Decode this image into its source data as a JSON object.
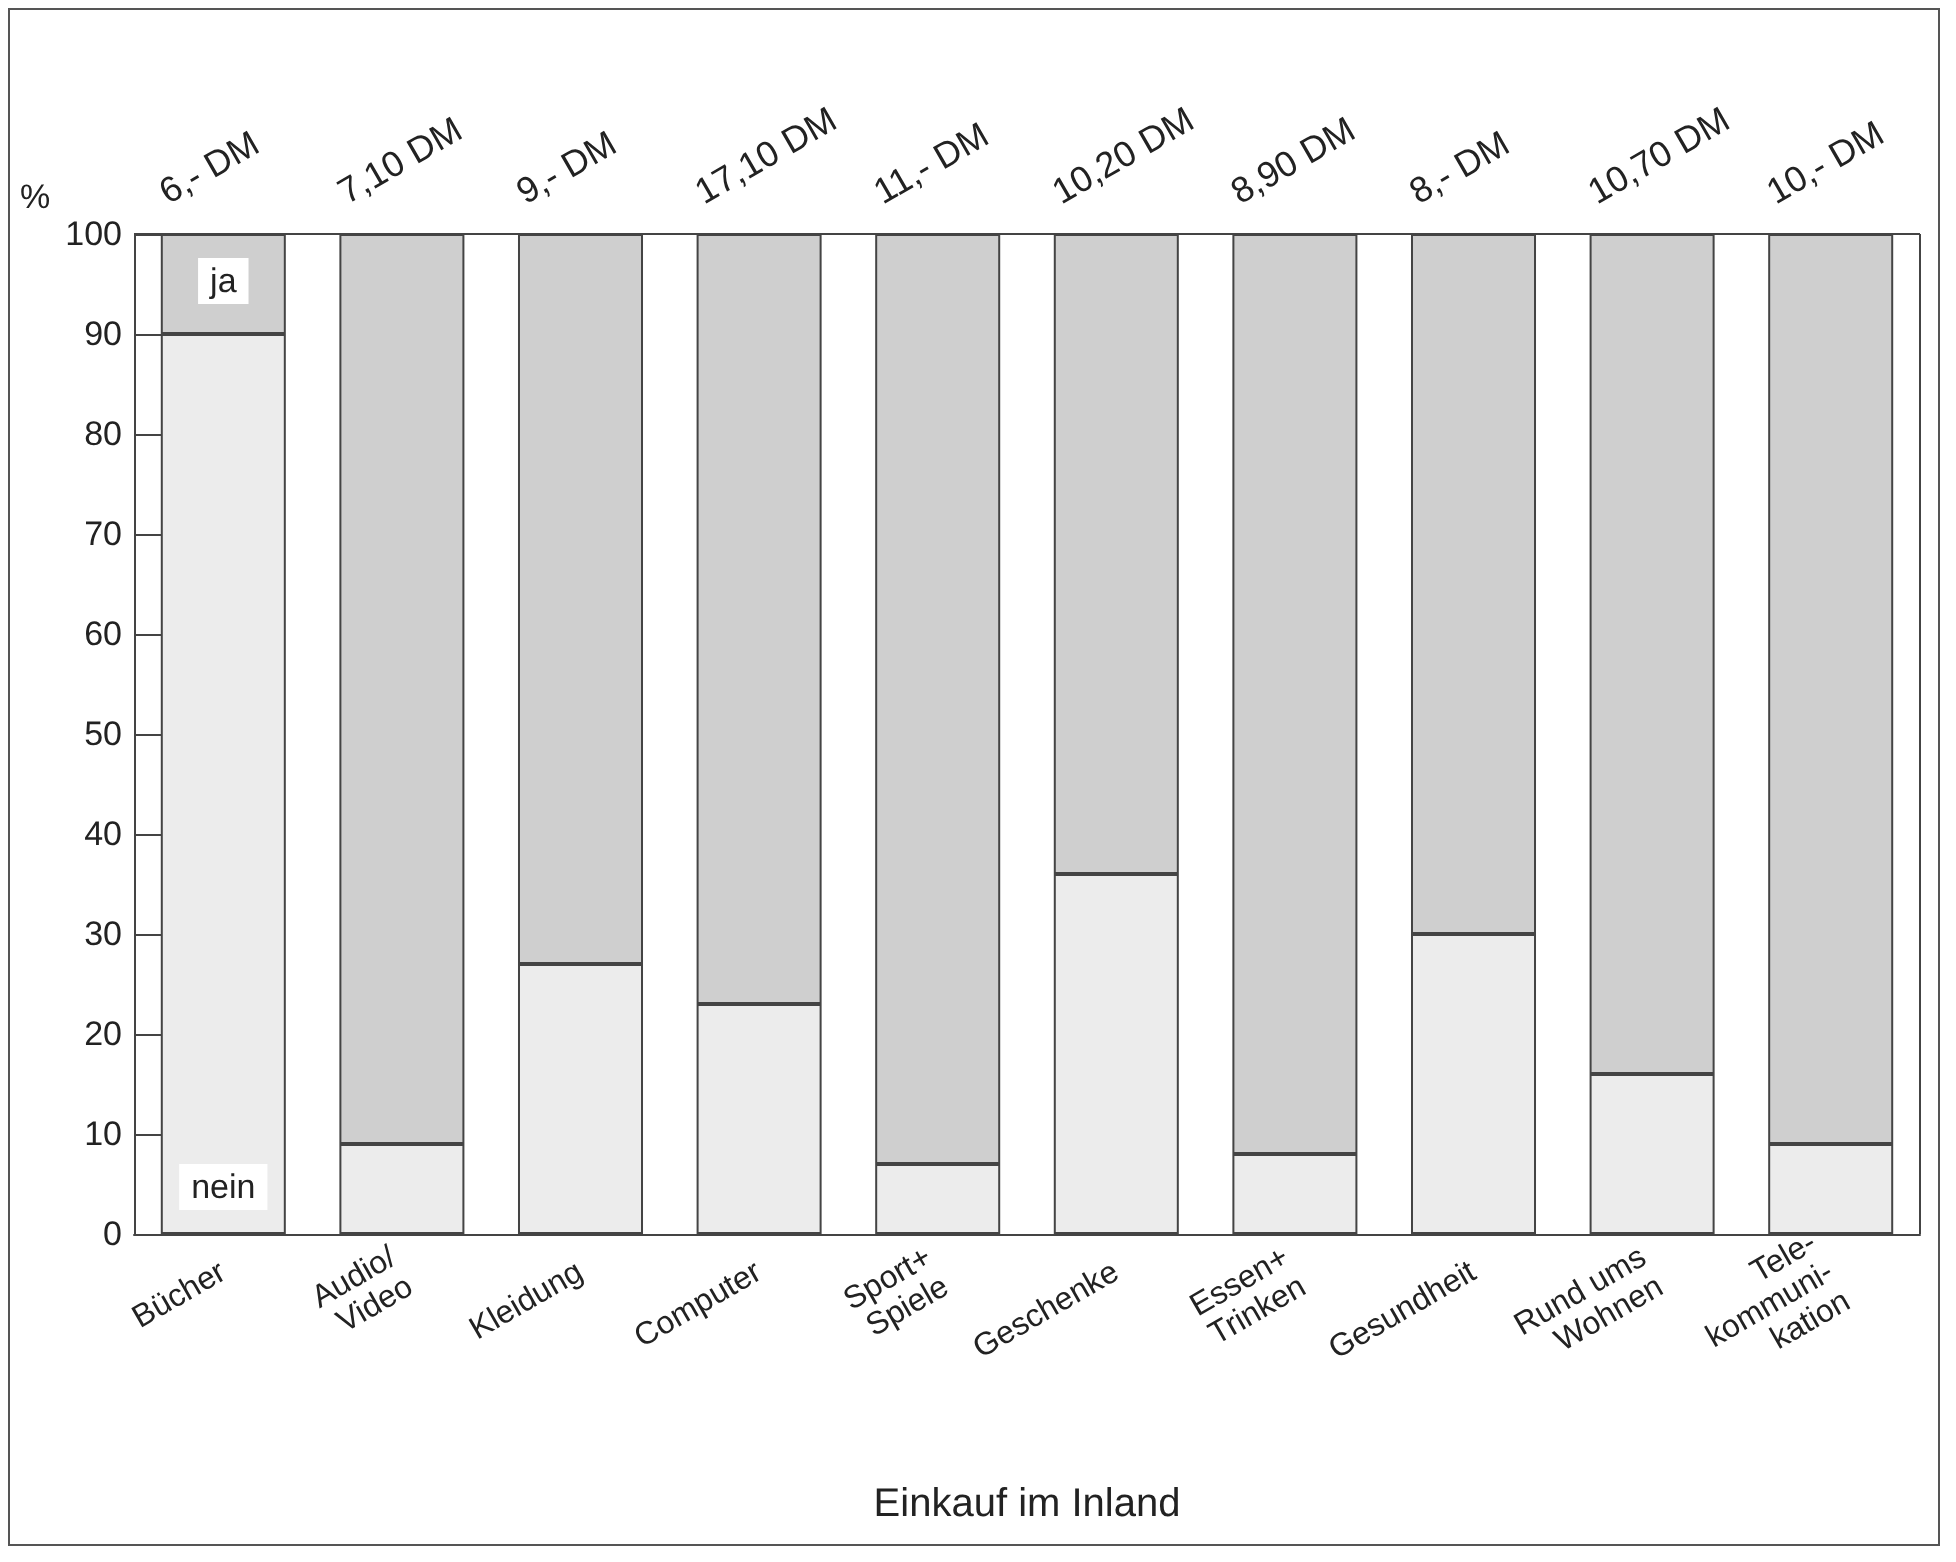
{
  "chart_data": {
    "type": "bar",
    "stacked": true,
    "xlabel": "Einkauf im Inland",
    "ylabel": "%",
    "categories": [
      "Bücher",
      "Audio/\nVideo",
      "Kleidung",
      "Computer",
      "Sport+\nSpiele",
      "Geschenke",
      "Essen+\nTrinken",
      "Gesundheit",
      "Rund ums\nWohnen",
      "Tele-\nkommuni-\nkation"
    ],
    "series": [
      {
        "name": "nein",
        "color": "#ececec",
        "values": [
          90,
          9,
          27,
          23,
          7,
          36,
          8,
          30,
          16,
          9
        ]
      },
      {
        "name": "ja",
        "color": "#cfcfcf",
        "values": [
          10,
          91,
          73,
          77,
          93,
          64,
          92,
          70,
          84,
          91
        ]
      }
    ],
    "ylim": [
      0,
      100
    ],
    "yticks": [
      0,
      10,
      20,
      30,
      40,
      50,
      60,
      70,
      80,
      90,
      100
    ],
    "grid": false,
    "legend": false,
    "annotations": [
      "6,- DM",
      "7,10 DM",
      "9,- DM",
      "17,10 DM",
      "11,- DM",
      "10,20 DM",
      "8,90 DM",
      "8,- DM",
      "10,70 DM",
      "10,- DM"
    ]
  }
}
